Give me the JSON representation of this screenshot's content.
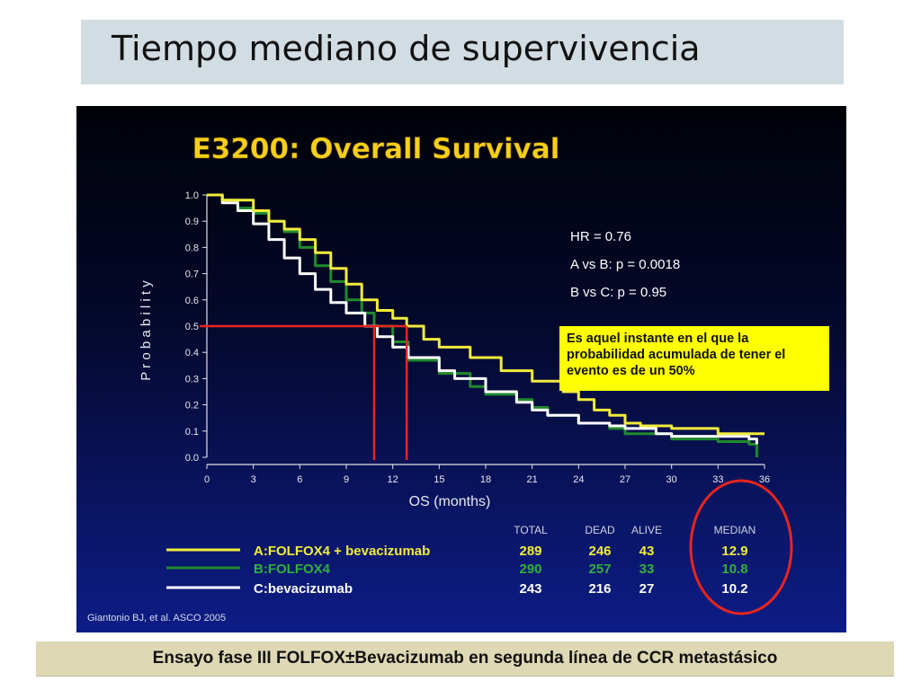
{
  "slide": {
    "title": "Tiempo mediano de supervivencia",
    "footer": "Ensayo fase III  FOLFOX±Bevacizumab en segunda línea de CCR metastásico"
  },
  "chart_data": {
    "type": "line",
    "title": "E3200: Overall Survival",
    "xlabel": "OS (months)",
    "ylabel": "P r o b a b i l i t y",
    "xlim": [
      0,
      36
    ],
    "ylim": [
      0.0,
      1.0
    ],
    "x_ticks": [
      "0",
      "3",
      "6",
      "9",
      "12",
      "15",
      "18",
      "21",
      "24",
      "27",
      "30",
      "33",
      "36"
    ],
    "y_ticks": [
      "1.0",
      "0.9",
      "0.8",
      "0.7",
      "0.6",
      "0.5",
      "0.4",
      "0.3",
      "0.2",
      "0.1",
      "0.0"
    ],
    "stats": [
      "HR = 0.76",
      "A vs B: p = 0.0018",
      "B vs C: p = 0.95"
    ],
    "annotation": "Es aquel instante en el que la probabilidad acumulada de tener el evento es de un 50%",
    "median_guides": [
      {
        "x": 10.8,
        "y": 0.5
      },
      {
        "x": 12.9,
        "y": 0.5
      }
    ],
    "table_headers": [
      "TOTAL",
      "DEAD",
      "ALIVE",
      "MEDIAN"
    ],
    "series": [
      {
        "name": "A:FOLFOX4 + bevacizumab",
        "color": "#f2ec3c",
        "total": "289",
        "dead": "246",
        "alive": "43",
        "median": "12.9",
        "points": [
          [
            0,
            1.0
          ],
          [
            1,
            0.98
          ],
          [
            3,
            0.94
          ],
          [
            4,
            0.9
          ],
          [
            5,
            0.87
          ],
          [
            6,
            0.83
          ],
          [
            7,
            0.78
          ],
          [
            8,
            0.72
          ],
          [
            9,
            0.66
          ],
          [
            10,
            0.6
          ],
          [
            11,
            0.56
          ],
          [
            12,
            0.53
          ],
          [
            12.9,
            0.5
          ],
          [
            14,
            0.45
          ],
          [
            15,
            0.42
          ],
          [
            17,
            0.38
          ],
          [
            19,
            0.33
          ],
          [
            21,
            0.29
          ],
          [
            23,
            0.25
          ],
          [
            24,
            0.22
          ],
          [
            25,
            0.18
          ],
          [
            26,
            0.16
          ],
          [
            27,
            0.13
          ],
          [
            28,
            0.12
          ],
          [
            30,
            0.11
          ],
          [
            33,
            0.09
          ],
          [
            35,
            0.09
          ],
          [
            36,
            0.09
          ]
        ]
      },
      {
        "name": "B:FOLFOX4",
        "color": "#1f8a2c",
        "total": "290",
        "dead": "257",
        "alive": "33",
        "median": "10.8",
        "points": [
          [
            0,
            1.0
          ],
          [
            1,
            0.98
          ],
          [
            2,
            0.95
          ],
          [
            3,
            0.93
          ],
          [
            4,
            0.9
          ],
          [
            5,
            0.86
          ],
          [
            6,
            0.8
          ],
          [
            7,
            0.73
          ],
          [
            8,
            0.67
          ],
          [
            9,
            0.6
          ],
          [
            10,
            0.55
          ],
          [
            10.8,
            0.5
          ],
          [
            12,
            0.44
          ],
          [
            13,
            0.37
          ],
          [
            15,
            0.32
          ],
          [
            17,
            0.27
          ],
          [
            18,
            0.24
          ],
          [
            20,
            0.22
          ],
          [
            21,
            0.19
          ],
          [
            22,
            0.16
          ],
          [
            24,
            0.13
          ],
          [
            26,
            0.11
          ],
          [
            27,
            0.09
          ],
          [
            30,
            0.07
          ],
          [
            33,
            0.06
          ],
          [
            35,
            0.05
          ],
          [
            35.5,
            0.0
          ]
        ]
      },
      {
        "name": "C:bevacizumab",
        "color": "#ffffff",
        "total": "243",
        "dead": "216",
        "alive": "27",
        "median": "10.2",
        "points": [
          [
            0,
            1.0
          ],
          [
            1,
            0.97
          ],
          [
            2,
            0.94
          ],
          [
            3,
            0.89
          ],
          [
            4,
            0.83
          ],
          [
            5,
            0.76
          ],
          [
            6,
            0.7
          ],
          [
            7,
            0.64
          ],
          [
            8,
            0.59
          ],
          [
            9,
            0.55
          ],
          [
            10.2,
            0.5
          ],
          [
            11,
            0.46
          ],
          [
            12,
            0.42
          ],
          [
            13,
            0.38
          ],
          [
            15,
            0.33
          ],
          [
            16,
            0.3
          ],
          [
            18,
            0.25
          ],
          [
            20,
            0.21
          ],
          [
            21,
            0.18
          ],
          [
            22,
            0.16
          ],
          [
            24,
            0.13
          ],
          [
            26,
            0.12
          ],
          [
            27,
            0.11
          ],
          [
            29,
            0.09
          ],
          [
            30,
            0.08
          ],
          [
            33,
            0.08
          ],
          [
            35,
            0.07
          ],
          [
            35.5,
            0.05
          ]
        ]
      }
    ],
    "citation": "Giantonio BJ, et al. ASCO 2005"
  }
}
